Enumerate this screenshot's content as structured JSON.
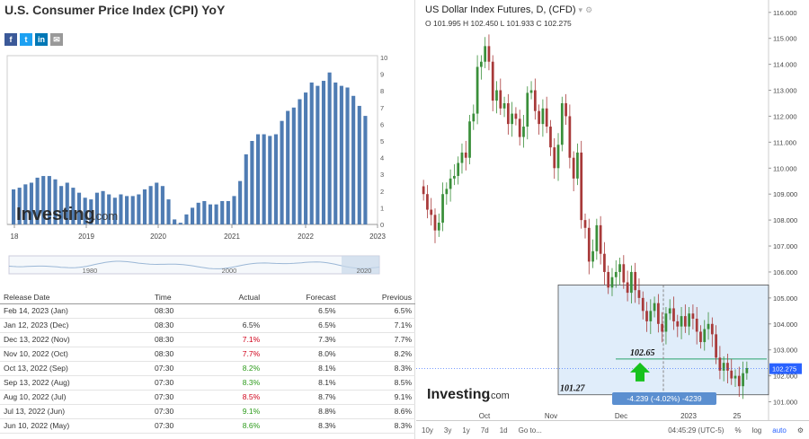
{
  "left_panel": {
    "title": "U.S. Consumer Price Index (CPI) YoY",
    "social": [
      {
        "name": "facebook-icon",
        "glyph": "f",
        "color": "#3b5998"
      },
      {
        "name": "twitter-icon",
        "glyph": "t",
        "color": "#1da1f2"
      },
      {
        "name": "linkedin-icon",
        "glyph": "in",
        "color": "#0077b5"
      },
      {
        "name": "email-icon",
        "glyph": "✉",
        "color": "#999999"
      }
    ],
    "watermark": {
      "main": "Investing",
      "suffix": ".com"
    },
    "navigator_labels": [
      "1980",
      "2000",
      "2020"
    ],
    "table": {
      "headers": [
        "Release Date",
        "Time",
        "Actual",
        "Forecast",
        "Previous"
      ],
      "rows": [
        {
          "date": "Feb 14, 2023 (Jan)",
          "time": "08:30",
          "actual": "",
          "actual_color": "",
          "forecast": "6.5%",
          "previous": "6.5%"
        },
        {
          "date": "Jan 12, 2023 (Dec)",
          "time": "08:30",
          "actual": "6.5%",
          "actual_color": "",
          "forecast": "6.5%",
          "previous": "7.1%"
        },
        {
          "date": "Dec 13, 2022 (Nov)",
          "time": "08:30",
          "actual": "7.1%",
          "actual_color": "red",
          "forecast": "7.3%",
          "previous": "7.7%"
        },
        {
          "date": "Nov 10, 2022 (Oct)",
          "time": "08:30",
          "actual": "7.7%",
          "actual_color": "red",
          "forecast": "8.0%",
          "previous": "8.2%"
        },
        {
          "date": "Oct 13, 2022 (Sep)",
          "time": "07:30",
          "actual": "8.2%",
          "actual_color": "green",
          "forecast": "8.1%",
          "previous": "8.3%"
        },
        {
          "date": "Sep 13, 2022 (Aug)",
          "time": "07:30",
          "actual": "8.3%",
          "actual_color": "green",
          "forecast": "8.1%",
          "previous": "8.5%"
        },
        {
          "date": "Aug 10, 2022 (Jul)",
          "time": "07:30",
          "actual": "8.5%",
          "actual_color": "red",
          "forecast": "8.7%",
          "previous": "9.1%"
        },
        {
          "date": "Jul 13, 2022 (Jun)",
          "time": "07:30",
          "actual": "9.1%",
          "actual_color": "green",
          "forecast": "8.8%",
          "previous": "8.6%"
        },
        {
          "date": "Jun 10, 2022 (May)",
          "time": "07:30",
          "actual": "8.6%",
          "actual_color": "green",
          "forecast": "8.3%",
          "previous": "8.3%"
        }
      ]
    }
  },
  "right_panel": {
    "title": "US Dollar Index Futures, D, (CFD)",
    "ohlc": "O 101.995  H 102.450  L 101.933  C 102.275",
    "last_price": "102.275",
    "annotations": {
      "level_high": "102.65",
      "level_low": "101.27",
      "measure": "-4.239 (-4.02%) -4239"
    },
    "watermark": {
      "main": "Investing",
      "suffix": ".com"
    },
    "toolbar": [
      "10y",
      "3y",
      "1y",
      "7d",
      "1d",
      "Go to...",
      "04:45:29 (UTC-5)",
      "%",
      "log",
      "auto"
    ]
  },
  "chart_data": [
    {
      "type": "bar",
      "title": "U.S. Consumer Price Index (CPI) YoY",
      "x_tick_labels": [
        "18",
        "2019",
        "2020",
        "2021",
        "2022",
        "2023"
      ],
      "ylim": [
        0,
        10
      ],
      "y_ticks": [
        0,
        1,
        2,
        3,
        4,
        5,
        6,
        7,
        8,
        9,
        10
      ],
      "series": [
        {
          "values": [
            2.1,
            2.2,
            2.4,
            2.5,
            2.8,
            2.9,
            2.9,
            2.7,
            2.3,
            2.5,
            2.2,
            1.9,
            1.6,
            1.5,
            1.9,
            2.0,
            1.8,
            1.6,
            1.8,
            1.7,
            1.7,
            1.8,
            2.1,
            2.3,
            2.5,
            2.3,
            1.5,
            0.3,
            0.1,
            0.6,
            1.0,
            1.3,
            1.4,
            1.2,
            1.2,
            1.4,
            1.4,
            1.7,
            2.6,
            4.2,
            5.0,
            5.4,
            5.4,
            5.3,
            5.4,
            6.2,
            6.8,
            7.0,
            7.5,
            7.9,
            8.5,
            8.3,
            8.6,
            9.1,
            8.5,
            8.3,
            8.2,
            7.7,
            7.1,
            6.5
          ]
        }
      ],
      "grid": false
    },
    {
      "type": "candlestick",
      "title": "US Dollar Index Futures, D, (CFD)",
      "x_tick_labels": [
        "Oct",
        "Nov",
        "Dec",
        "2023",
        "25"
      ],
      "ylim": [
        100.5,
        116.2
      ],
      "y_ticks": [
        101,
        102,
        103,
        104,
        105,
        106,
        107,
        108,
        109,
        110,
        111,
        112,
        113,
        114,
        115,
        116
      ],
      "series": [
        {
          "close": [
            109.0,
            108.4,
            108.2,
            107.6,
            107.9,
            109.0,
            109.2,
            109.6,
            109.7,
            110.2,
            110.6,
            110.4,
            111.8,
            112.1,
            113.9,
            114.1,
            114.7,
            114.1,
            112.6,
            113.0,
            112.3,
            112.5,
            111.7,
            112.1,
            111.9,
            111.2,
            111.6,
            112.9,
            113.0,
            112.2,
            111.7,
            112.3,
            111.6,
            110.8,
            110.0,
            110.9,
            112.5,
            112.0,
            110.4,
            109.6,
            110.6,
            108.0,
            107.7,
            106.4,
            106.8,
            107.8,
            106.7,
            106.0,
            105.4,
            105.8,
            106.0,
            106.3,
            105.6,
            105.2,
            106.0,
            105.3,
            105.0,
            104.5,
            104.1,
            104.5,
            104.8,
            104.0,
            103.7,
            104.4,
            104.6,
            104.1,
            103.9,
            104.3,
            103.9,
            104.4,
            104.2,
            103.7,
            103.3,
            103.8,
            104.0,
            103.6,
            102.7,
            102.2,
            102.5,
            102.2,
            101.9,
            102.0,
            101.6,
            102.1,
            102.3
          ]
        }
      ],
      "horizontal_levels": [
        105.5,
        102.65,
        101.27
      ],
      "last_price": 102.275
    }
  ]
}
